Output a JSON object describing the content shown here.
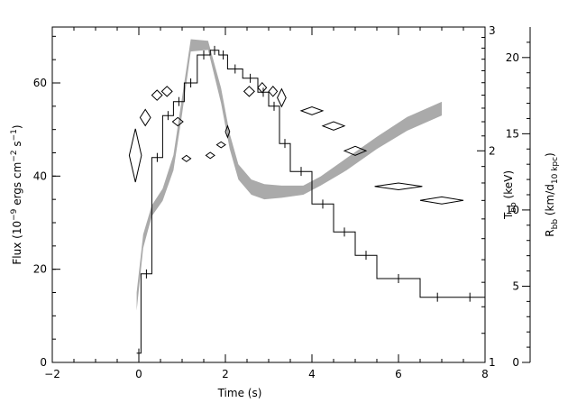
{
  "chart_data": {
    "type": "line",
    "xlabel": "Time (s)",
    "xlim": [
      -2,
      8
    ],
    "x_ticks": [
      "-2",
      "0",
      "2",
      "4",
      "6",
      "8"
    ],
    "left_axis": {
      "label": "Flux (10⁻⁹ ergs cm⁻² s⁻¹)",
      "ylim": [
        0,
        72
      ],
      "ticks": [
        "0",
        "20",
        "40",
        "60"
      ]
    },
    "middle_axis": {
      "label": "Tₕₕ (keV)",
      "label_main": "T",
      "label_sub": "bb",
      "label_unit": "(keV)",
      "scale": "log",
      "ylim": [
        1,
        3
      ],
      "ticks": [
        "1",
        "2",
        "3"
      ]
    },
    "right_axis": {
      "label": "Rₕₕ (km/d₁₀ kpc)",
      "label_main": "R",
      "label_sub": "bb",
      "label_unit_a": "(km/d",
      "label_unit_sub": "10 kpc",
      "label_unit_b": ")",
      "ylim": [
        0,
        22
      ],
      "ticks": [
        "0",
        "5",
        "10",
        "15",
        "20"
      ]
    },
    "series": [
      {
        "kind": "flux-histogram",
        "axis": "left",
        "color": "#000000",
        "edges": [
          -0.05,
          0.05,
          0.3,
          0.55,
          0.8,
          1.05,
          1.35,
          1.65,
          1.85,
          2.05,
          2.4,
          2.75,
          3.0,
          3.25,
          3.5,
          4.0,
          4.5,
          5.0,
          5.5,
          6.5,
          7.3,
          8.0
        ],
        "values": [
          2,
          19,
          44,
          53,
          56,
          60,
          66,
          67,
          66,
          63,
          61,
          58,
          55,
          47,
          41,
          34,
          28,
          23,
          18,
          14,
          14
        ]
      },
      {
        "kind": "temperature",
        "axis": "middle",
        "color": "#000000",
        "points": [
          {
            "x": -0.08,
            "y": 1.97,
            "dx": 0.14,
            "dy": 0.18
          },
          {
            "x": 0.15,
            "y": 2.23,
            "dx": 0.12,
            "dy": 0.06
          },
          {
            "x": 0.42,
            "y": 2.4,
            "dx": 0.12,
            "dy": 0.04
          },
          {
            "x": 0.65,
            "y": 2.43,
            "dx": 0.12,
            "dy": 0.04
          },
          {
            "x": 2.55,
            "y": 2.43,
            "dx": 0.12,
            "dy": 0.04
          },
          {
            "x": 2.85,
            "y": 2.46,
            "dx": 0.1,
            "dy": 0.04
          },
          {
            "x": 3.1,
            "y": 2.43,
            "dx": 0.1,
            "dy": 0.04
          },
          {
            "x": 3.3,
            "y": 2.38,
            "dx": 0.1,
            "dy": 0.07
          },
          {
            "x": 4.0,
            "y": 2.28,
            "dx": 0.25,
            "dy": 0.03
          },
          {
            "x": 4.5,
            "y": 2.17,
            "dx": 0.25,
            "dy": 0.03
          },
          {
            "x": 5.0,
            "y": 2.0,
            "dx": 0.25,
            "dy": 0.03
          },
          {
            "x": 6.0,
            "y": 1.78,
            "dx": 0.55,
            "dy": 0.02
          },
          {
            "x": 7.0,
            "y": 1.7,
            "dx": 0.5,
            "dy": 0.02
          }
        ]
      },
      {
        "kind": "temperature-open-diamonds",
        "axis": "middle",
        "color": "#000000",
        "points": [
          {
            "x": 0.9,
            "y": 2.2,
            "dx": 0.12,
            "dy": 0.03
          },
          {
            "x": 1.1,
            "y": 1.95,
            "dx": 0.1,
            "dy": 0.02
          },
          {
            "x": 1.65,
            "y": 1.97,
            "dx": 0.1,
            "dy": 0.02
          },
          {
            "x": 1.9,
            "y": 2.04,
            "dx": 0.1,
            "dy": 0.02
          },
          {
            "x": 2.05,
            "y": 2.13,
            "dx": 0.05,
            "dy": 0.04
          }
        ]
      },
      {
        "kind": "radius-band",
        "axis": "right",
        "color": "#aaaaaa",
        "x": [
          -0.05,
          0.1,
          0.3,
          0.55,
          0.8,
          1.0,
          1.2,
          1.6,
          1.9,
          2.1,
          2.3,
          2.6,
          2.9,
          3.3,
          3.8,
          4.2,
          4.8,
          5.5,
          6.2,
          7.0
        ],
        "low": [
          3.4,
          7.5,
          9.6,
          10.6,
          12.6,
          16.3,
          20.4,
          20.5,
          17.0,
          14.0,
          12.0,
          11.0,
          10.7,
          10.8,
          11.0,
          11.6,
          12.6,
          14.0,
          15.2,
          16.2
        ],
        "high": [
          4.6,
          8.4,
          10.3,
          11.4,
          13.6,
          17.4,
          21.2,
          21.1,
          18.0,
          15.0,
          13.0,
          12.0,
          11.7,
          11.6,
          11.6,
          12.2,
          13.4,
          14.8,
          16.1,
          17.1
        ]
      }
    ]
  }
}
